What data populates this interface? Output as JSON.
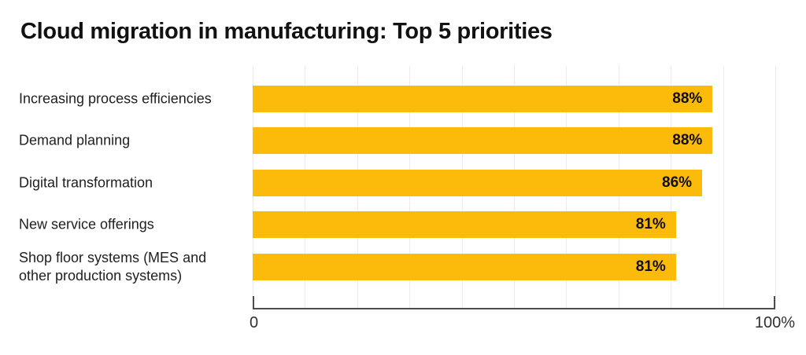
{
  "chart_data": {
    "type": "bar",
    "orientation": "horizontal",
    "title": "Cloud migration in manufacturing: Top 5 priorities",
    "categories": [
      "Increasing process efficiencies",
      "Demand planning",
      "Digital transformation",
      "New service offerings",
      "Shop floor systems (MES and other production systems)"
    ],
    "values": [
      88,
      88,
      86,
      81,
      81
    ],
    "value_labels": [
      "88%",
      "88%",
      "86%",
      "81%",
      "81%"
    ],
    "xlabel": "",
    "ylabel": "",
    "xlim": [
      0,
      100
    ],
    "xtick_labels": [
      "0",
      "100%"
    ],
    "gridline_percents": [
      0,
      10,
      20,
      30,
      40,
      50,
      60,
      70,
      80,
      90,
      100
    ],
    "grid": true,
    "legend": false,
    "colors": {
      "bar": "#FCBA0B",
      "value_label": "#0f0f0f",
      "category_label": "#1f1f1f",
      "title": "#121212",
      "gridline": "#ececec",
      "axis": "#4d4d4d",
      "tick_label": "#303030",
      "background": "#ffffff"
    }
  }
}
